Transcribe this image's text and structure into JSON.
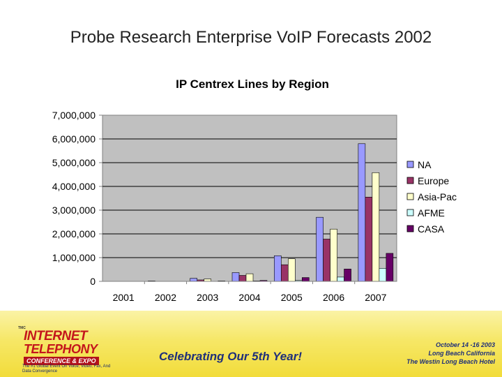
{
  "slide": {
    "title": "Probe Research Enterprise VoIP Forecasts 2002"
  },
  "chart_data": {
    "type": "bar",
    "title": "IP Centrex Lines by Region",
    "categories": [
      "2001",
      "2002",
      "2003",
      "2004",
      "2005",
      "2006",
      "2007"
    ],
    "ylim": [
      0,
      7000000
    ],
    "yticks": [
      0,
      1000000,
      2000000,
      3000000,
      4000000,
      5000000,
      6000000,
      7000000
    ],
    "ytick_labels": [
      "0",
      "1,000,000",
      "2,000,000",
      "3,000,000",
      "4,000,000",
      "5,000,000",
      "6,000,000",
      "7,000,000"
    ],
    "grid": "horizontal",
    "legend_position": "right",
    "series": [
      {
        "name": "NA",
        "color": "#9999ff",
        "values": [
          0,
          20000,
          130000,
          370000,
          1080000,
          2700000,
          5800000
        ]
      },
      {
        "name": "Europe",
        "color": "#993366",
        "values": [
          0,
          10000,
          60000,
          250000,
          700000,
          1780000,
          3550000
        ]
      },
      {
        "name": "Asia-Pac",
        "color": "#ffffcc",
        "values": [
          0,
          10000,
          100000,
          320000,
          950000,
          2200000,
          4580000
        ]
      },
      {
        "name": "AFME",
        "color": "#ccffff",
        "values": [
          0,
          0,
          10000,
          20000,
          40000,
          180000,
          550000
        ]
      },
      {
        "name": "CASA",
        "color": "#660066",
        "values": [
          0,
          0,
          20000,
          40000,
          160000,
          520000,
          1180000
        ]
      }
    ]
  },
  "footer": {
    "logo": {
      "tm": "TMC",
      "line1": "INTERNET",
      "line2": "TELEPHONY",
      "line3": "CONFERENCE & EXPO",
      "tagline": "The #1 Global Event On Voice, Video, Fax, And Data Convergence"
    },
    "celebrate": "Celebrating Our 5th Year!",
    "event": {
      "dates": "October 14 -16 2003",
      "location": "Long Beach California",
      "venue": "The Westin Long Beach Hotel"
    },
    "colors": {
      "background": "#f5e35c",
      "accent": "#c4161c",
      "text": "#1f2f7a"
    }
  }
}
